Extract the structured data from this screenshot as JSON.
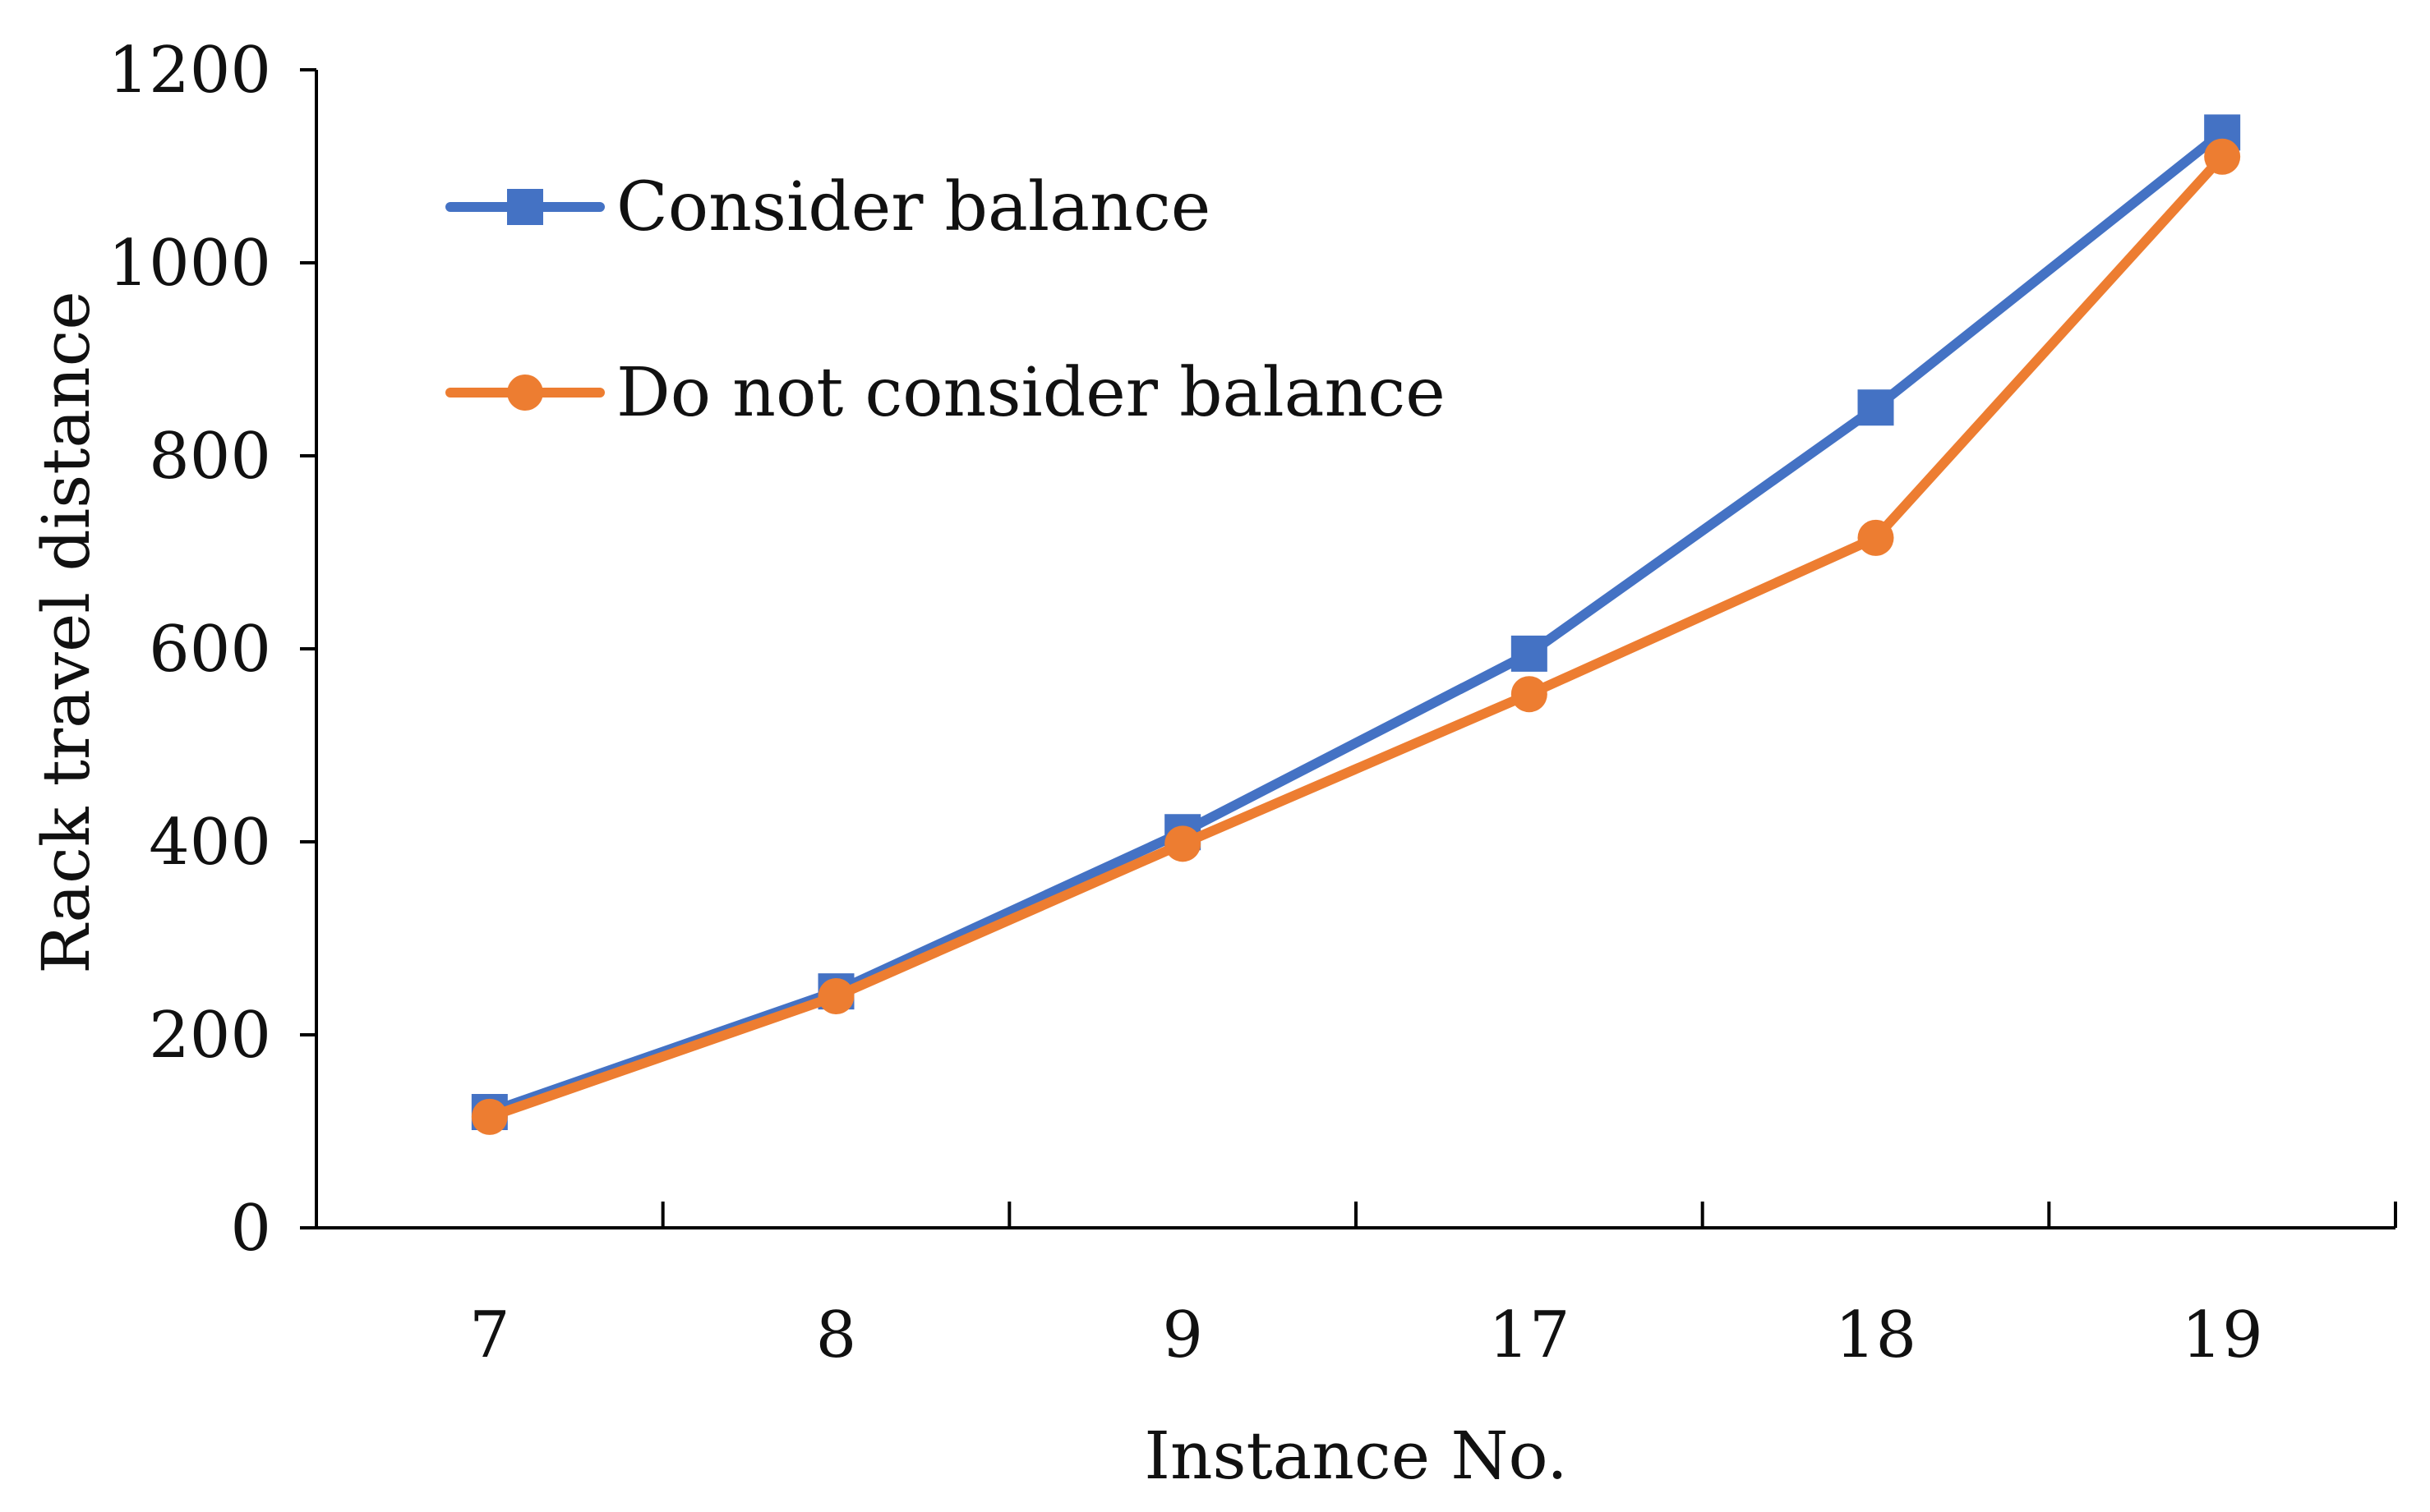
{
  "chart_data": {
    "type": "line",
    "xlabel": "Instance No.",
    "ylabel": "Rack travel distance",
    "categories": [
      "7",
      "8",
      "9",
      "17",
      "18",
      "19"
    ],
    "ylim": [
      0,
      1200
    ],
    "y_ticks": [
      "0",
      "200",
      "400",
      "600",
      "800",
      "1000",
      "1200"
    ],
    "grid": false,
    "legend_position": "top-left",
    "series": [
      {
        "name": "Consider balance",
        "values": [
          120,
          245,
          410,
          595,
          850,
          1135
        ],
        "color": "#4472C4",
        "marker": "square"
      },
      {
        "name": "Do not consider balance",
        "values": [
          115,
          240,
          398,
          553,
          715,
          1110
        ],
        "color": "#ED7D31",
        "marker": "circle"
      }
    ]
  }
}
